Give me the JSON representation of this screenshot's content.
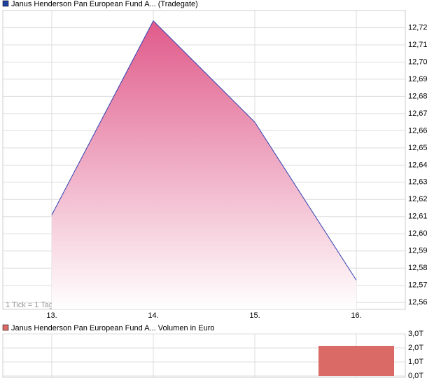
{
  "chart_data": [
    {
      "type": "area",
      "legend": "Janus Henderson Pan European Fund A... (Tradegate)",
      "annotation": "1 Tick = 1 Tag",
      "categories": [
        "13.",
        "14.",
        "15.",
        "16."
      ],
      "values": [
        12.611,
        12.724,
        12.665,
        12.573
      ],
      "color": "#3040b0",
      "fill": "#e05a8a",
      "ylim": [
        12.556,
        12.73
      ],
      "yticks": [
        {
          "value": 12.56,
          "label": "12,56"
        },
        {
          "value": 12.57,
          "label": "12,57"
        },
        {
          "value": 12.58,
          "label": "12,58"
        },
        {
          "value": 12.59,
          "label": "12,59"
        },
        {
          "value": 12.6,
          "label": "12,60"
        },
        {
          "value": 12.61,
          "label": "12,61"
        },
        {
          "value": 12.62,
          "label": "12,62"
        },
        {
          "value": 12.63,
          "label": "12,63"
        },
        {
          "value": 12.64,
          "label": "12,64"
        },
        {
          "value": 12.65,
          "label": "12,65"
        },
        {
          "value": 12.66,
          "label": "12,66"
        },
        {
          "value": 12.67,
          "label": "12,67"
        },
        {
          "value": 12.68,
          "label": "12,68"
        },
        {
          "value": 12.69,
          "label": "12,69"
        },
        {
          "value": 12.7,
          "label": "12,70"
        },
        {
          "value": 12.71,
          "label": "12,71"
        },
        {
          "value": 12.72,
          "label": "12,72"
        }
      ],
      "grid": true
    },
    {
      "type": "bar",
      "legend": "Janus Henderson Pan European Fund A... Volumen in Euro",
      "values": [
        null,
        null,
        null,
        2.15
      ],
      "color": "#d96a66",
      "ylim": [
        -0.1,
        3
      ],
      "yticks": [
        {
          "value": 0,
          "label": "0,0T"
        },
        {
          "value": 1,
          "label": "1,0T"
        },
        {
          "value": 2,
          "label": "2,0T"
        },
        {
          "value": 3,
          "label": "3,0T"
        }
      ],
      "grid": true
    }
  ]
}
